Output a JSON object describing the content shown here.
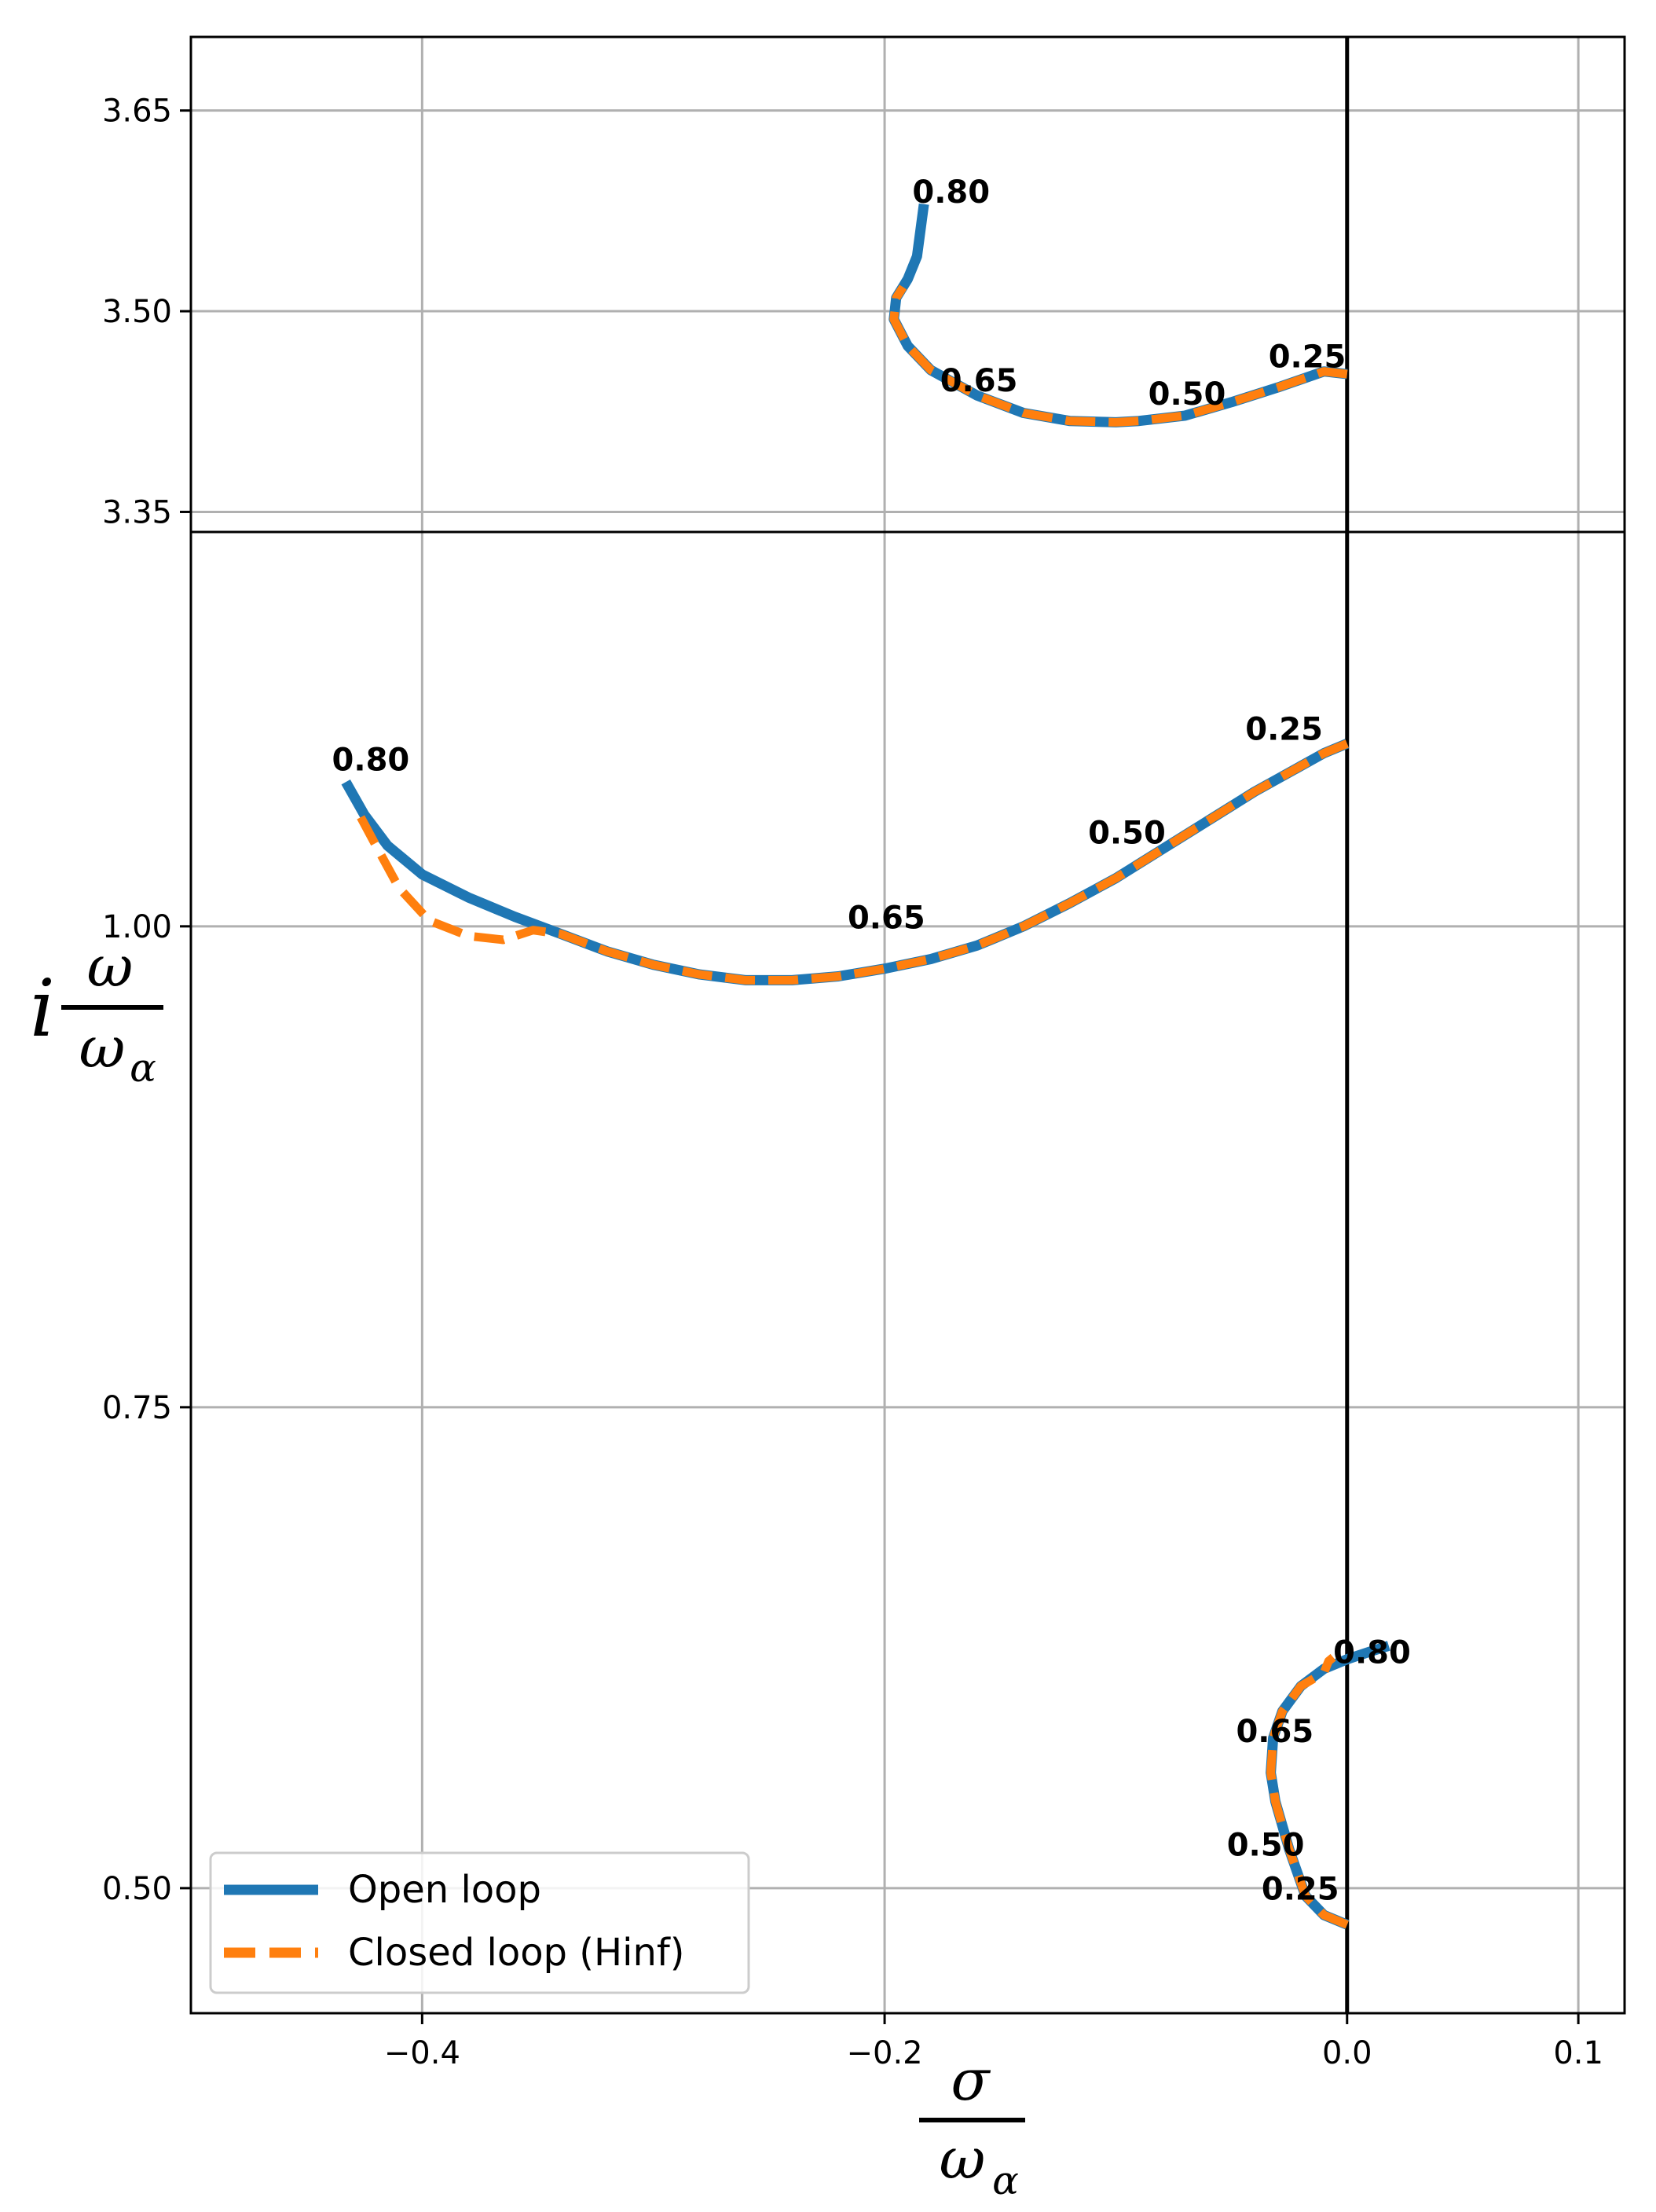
{
  "chart_data": {
    "type": "line",
    "panels": [
      "top",
      "bottom"
    ],
    "xlim": [
      -0.5,
      0.12
    ],
    "xticks": [
      -0.4,
      -0.2,
      0.0,
      0.1
    ],
    "xtick_labels": [
      "−0.4",
      "−0.2",
      "0.0",
      "0.1"
    ],
    "top_ylim": [
      3.335,
      3.705
    ],
    "top_yticks": [
      3.35,
      3.5,
      3.65
    ],
    "top_ytick_labels": [
      "3.35",
      "3.50",
      "3.65"
    ],
    "bottom_ylim": [
      0.435,
      1.205
    ],
    "bottom_yticks": [
      0.5,
      0.75,
      1.0
    ],
    "bottom_ytick_labels": [
      "0.50",
      "0.75",
      "1.00"
    ],
    "xlabel": {
      "num": "σ",
      "den": "ω",
      "sub": "α"
    },
    "ylabel": {
      "prefix": "i",
      "num": "ω",
      "den": "ω",
      "sub": "α"
    },
    "grid": true,
    "vertical_line_x": 0.0,
    "legend": {
      "position": "lower-left",
      "entries": [
        "Open loop",
        "Closed loop (Hinf)"
      ]
    },
    "colors": {
      "open_loop": "#1f77b4",
      "closed_loop": "#ff7f0e"
    },
    "series": [
      {
        "name": "Open loop",
        "panel": "top",
        "points": [
          [
            0,
            3.453
          ],
          [
            -0.01,
            3.455
          ],
          [
            -0.03,
            3.443
          ],
          [
            -0.05,
            3.432
          ],
          [
            -0.07,
            3.422
          ],
          [
            -0.09,
            3.418
          ],
          [
            -0.1,
            3.417
          ],
          [
            -0.12,
            3.418
          ],
          [
            -0.14,
            3.424
          ],
          [
            -0.16,
            3.437
          ],
          [
            -0.18,
            3.456
          ],
          [
            -0.19,
            3.474
          ],
          [
            -0.196,
            3.494
          ],
          [
            -0.195,
            3.51
          ],
          [
            -0.19,
            3.524
          ],
          [
            -0.186,
            3.541
          ],
          [
            -0.183,
            3.58
          ]
        ]
      },
      {
        "name": "Closed loop (Hinf)",
        "panel": "top",
        "points": [
          [
            0,
            3.453
          ],
          [
            -0.01,
            3.455
          ],
          [
            -0.03,
            3.443
          ],
          [
            -0.05,
            3.432
          ],
          [
            -0.07,
            3.422
          ],
          [
            -0.09,
            3.418
          ],
          [
            -0.1,
            3.417
          ],
          [
            -0.12,
            3.418
          ],
          [
            -0.14,
            3.424
          ],
          [
            -0.16,
            3.437
          ],
          [
            -0.18,
            3.456
          ],
          [
            -0.19,
            3.474
          ],
          [
            -0.196,
            3.494
          ],
          [
            -0.195,
            3.51
          ],
          [
            -0.192,
            3.518
          ]
        ]
      },
      {
        "name": "Open loop",
        "panel": "bottom",
        "points": [
          [
            0,
            1.095
          ],
          [
            -0.01,
            1.09
          ],
          [
            -0.025,
            1.08
          ],
          [
            -0.04,
            1.07
          ],
          [
            -0.06,
            1.055
          ],
          [
            -0.08,
            1.04
          ],
          [
            -0.1,
            1.025
          ],
          [
            -0.12,
            1.012
          ],
          [
            -0.14,
            1.0
          ],
          [
            -0.16,
            0.99
          ],
          [
            -0.18,
            0.983
          ],
          [
            -0.2,
            0.978
          ],
          [
            -0.22,
            0.974
          ],
          [
            -0.24,
            0.972
          ],
          [
            -0.26,
            0.972
          ],
          [
            -0.28,
            0.975
          ],
          [
            -0.3,
            0.98
          ],
          [
            -0.32,
            0.987
          ],
          [
            -0.34,
            0.996
          ],
          [
            -0.36,
            1.005
          ],
          [
            -0.38,
            1.015
          ],
          [
            -0.4,
            1.027
          ],
          [
            -0.415,
            1.042
          ],
          [
            -0.425,
            1.058
          ],
          [
            -0.433,
            1.075
          ]
        ]
      },
      {
        "name": "Closed loop (Hinf)",
        "panel": "bottom",
        "points": [
          [
            0,
            1.095
          ],
          [
            -0.01,
            1.09
          ],
          [
            -0.025,
            1.08
          ],
          [
            -0.04,
            1.07
          ],
          [
            -0.06,
            1.055
          ],
          [
            -0.08,
            1.04
          ],
          [
            -0.1,
            1.025
          ],
          [
            -0.12,
            1.012
          ],
          [
            -0.14,
            1.0
          ],
          [
            -0.16,
            0.99
          ],
          [
            -0.18,
            0.983
          ],
          [
            -0.2,
            0.978
          ],
          [
            -0.22,
            0.974
          ],
          [
            -0.24,
            0.972
          ],
          [
            -0.26,
            0.972
          ],
          [
            -0.28,
            0.975
          ],
          [
            -0.3,
            0.98
          ],
          [
            -0.32,
            0.987
          ],
          [
            -0.34,
            0.996
          ],
          [
            -0.352,
            0.998
          ],
          [
            -0.365,
            0.993
          ],
          [
            -0.38,
            0.995
          ],
          [
            -0.397,
            1.003
          ],
          [
            -0.41,
            1.02
          ],
          [
            -0.42,
            1.042
          ],
          [
            -0.428,
            1.06
          ]
        ]
      },
      {
        "name": "Open loop",
        "panel": "bottom",
        "points": [
          [
            0,
            0.481
          ],
          [
            -0.01,
            0.486
          ],
          [
            -0.018,
            0.496
          ],
          [
            -0.025,
            0.52
          ],
          [
            -0.031,
            0.545
          ],
          [
            -0.033,
            0.56
          ],
          [
            -0.032,
            0.578
          ],
          [
            -0.028,
            0.592
          ],
          [
            -0.02,
            0.605
          ],
          [
            -0.01,
            0.614
          ],
          [
            0,
            0.619
          ],
          [
            0.01,
            0.623
          ],
          [
            0.018,
            0.626
          ]
        ]
      },
      {
        "name": "Closed loop (Hinf)",
        "panel": "bottom",
        "points": [
          [
            0,
            0.481
          ],
          [
            -0.01,
            0.486
          ],
          [
            -0.018,
            0.496
          ],
          [
            -0.025,
            0.52
          ],
          [
            -0.031,
            0.545
          ],
          [
            -0.033,
            0.56
          ],
          [
            -0.032,
            0.578
          ],
          [
            -0.028,
            0.592
          ],
          [
            -0.02,
            0.605
          ],
          [
            -0.01,
            0.612
          ],
          [
            -0.008,
            0.618
          ],
          [
            -0.006,
            0.62
          ]
        ]
      }
    ],
    "annotations": [
      {
        "panel": "top",
        "text": "0.80",
        "x": -0.188,
        "y": 3.581
      },
      {
        "panel": "top",
        "text": "0.65",
        "x": -0.176,
        "y": 3.44
      },
      {
        "panel": "top",
        "text": "0.50",
        "x": -0.086,
        "y": 3.43
      },
      {
        "panel": "top",
        "text": "0.25",
        "x": -0.034,
        "y": 3.458
      },
      {
        "panel": "bottom",
        "text": "0.80",
        "x": -0.439,
        "y": 1.081
      },
      {
        "panel": "bottom",
        "text": "0.65",
        "x": -0.216,
        "y": 0.999
      },
      {
        "panel": "bottom",
        "text": "0.50",
        "x": -0.112,
        "y": 1.043
      },
      {
        "panel": "bottom",
        "text": "0.25",
        "x": -0.044,
        "y": 1.097
      },
      {
        "panel": "bottom",
        "text": "0.80",
        "x": -0.006,
        "y": 0.617
      },
      {
        "panel": "bottom",
        "text": "0.65",
        "x": -0.048,
        "y": 0.576
      },
      {
        "panel": "bottom",
        "text": "0.50",
        "x": -0.052,
        "y": 0.517
      },
      {
        "panel": "bottom",
        "text": "0.25",
        "x": -0.037,
        "y": 0.494
      }
    ]
  }
}
